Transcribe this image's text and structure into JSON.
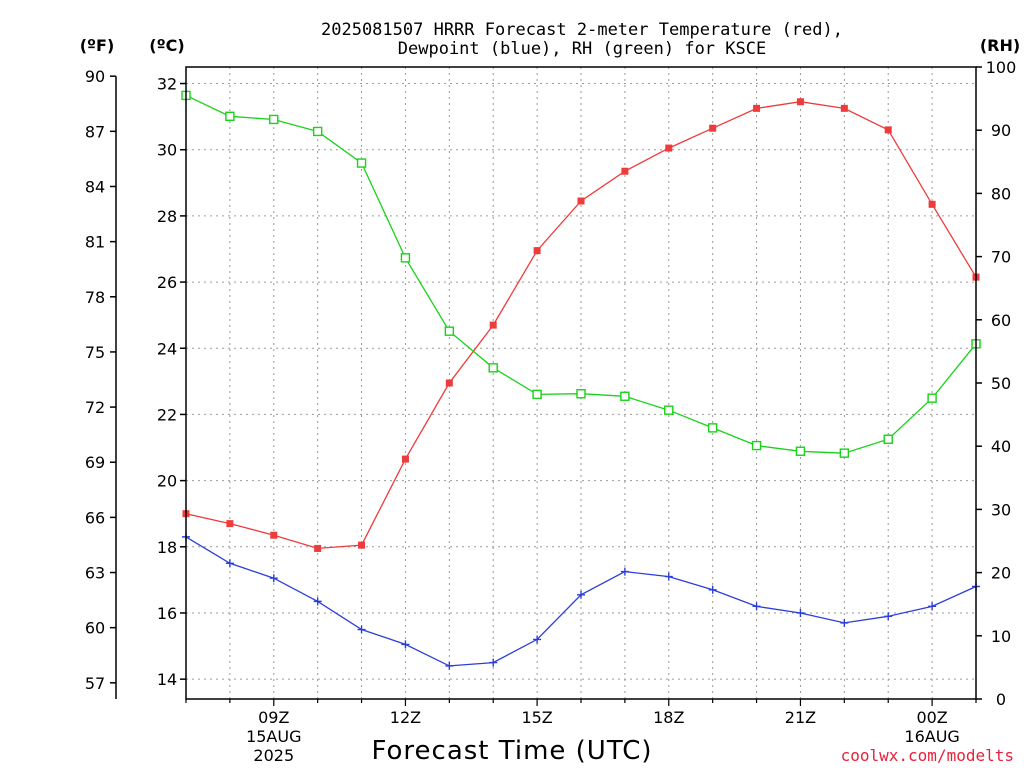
{
  "chart_data": {
    "type": "line",
    "title_line1": "2025081507 HRRR Forecast 2-meter Temperature (red),",
    "title_line2": "Dewpoint (blue), RH (green) for KSCE",
    "xlabel": "Forecast Time (UTC)",
    "credit": "coolwx.com/modelts",
    "units": {
      "fahrenheit": "(ºF)",
      "celsius": "(ºC)",
      "rh": "(RH)"
    },
    "x_hours": [
      7,
      8,
      9,
      10,
      11,
      12,
      13,
      14,
      15,
      16,
      17,
      18,
      19,
      20,
      21,
      22,
      23,
      24,
      25
    ],
    "x_ticks": [
      {
        "hour": 9,
        "label": "09Z",
        "date": "15AUG",
        "year": "2025"
      },
      {
        "hour": 12,
        "label": "12Z",
        "date": "",
        "year": ""
      },
      {
        "hour": 15,
        "label": "15Z",
        "date": "",
        "year": ""
      },
      {
        "hour": 18,
        "label": "18Z",
        "date": "",
        "year": ""
      },
      {
        "hour": 21,
        "label": "21Z",
        "date": "",
        "year": ""
      },
      {
        "hour": 24,
        "label": "00Z",
        "date": "16AUG",
        "year": ""
      }
    ],
    "x_range": [
      7,
      25
    ],
    "celsius_axis": {
      "range": [
        13.4,
        32.5
      ],
      "ticks": [
        "14",
        "16",
        "18",
        "20",
        "22",
        "24",
        "26",
        "28",
        "30",
        "32"
      ]
    },
    "fahrenheit_axis": {
      "ticks": [
        "57",
        "60",
        "63",
        "66",
        "69",
        "72",
        "75",
        "78",
        "81",
        "84",
        "87",
        "90"
      ]
    },
    "rh_axis": {
      "range": [
        0,
        100
      ],
      "ticks": [
        "0",
        "10",
        "20",
        "30",
        "40",
        "50",
        "60",
        "70",
        "80",
        "90",
        "100"
      ]
    },
    "series": [
      {
        "name": "Temperature",
        "axis": "celsius",
        "color": "#ee3b3b",
        "marker": "filled-square",
        "values": [
          19.0,
          18.7,
          18.35,
          17.95,
          18.05,
          20.65,
          22.95,
          24.7,
          26.95,
          28.45,
          29.35,
          30.05,
          30.65,
          31.25,
          31.45,
          31.25,
          30.6,
          28.35,
          26.15
        ]
      },
      {
        "name": "Dewpoint",
        "axis": "celsius",
        "color": "#2b3fd8",
        "marker": "plus",
        "values": [
          18.3,
          17.5,
          17.05,
          16.35,
          15.5,
          15.05,
          14.4,
          14.5,
          15.2,
          16.55,
          17.25,
          17.1,
          16.7,
          16.2,
          16.0,
          15.7,
          15.9,
          16.2,
          16.8
        ]
      },
      {
        "name": "RH",
        "axis": "rh",
        "color": "#19d219",
        "marker": "open-square",
        "values": [
          95.5,
          92.2,
          91.7,
          89.8,
          84.8,
          69.8,
          58.2,
          52.4,
          48.2,
          48.3,
          47.9,
          45.7,
          42.9,
          40.1,
          39.2,
          38.9,
          41.1,
          47.6,
          56.2
        ]
      }
    ],
    "grid": true
  }
}
